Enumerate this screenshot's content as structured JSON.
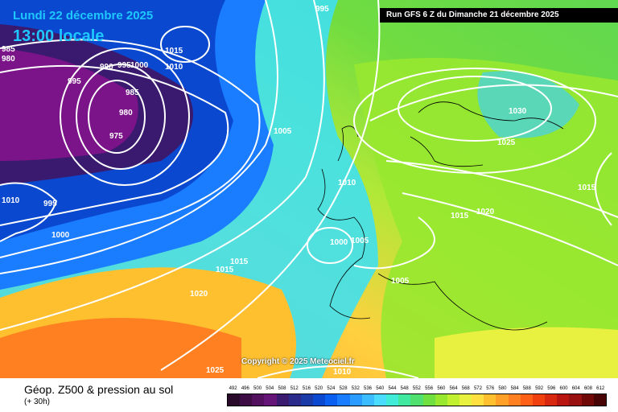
{
  "header": {
    "date": "Lundi 22 décembre 2025",
    "time": "13:00 locale",
    "run": "Run GFS 6 Z du Dimanche 21 décembre 2025"
  },
  "copyright": "Copyright © 2025 Meteociel.fr",
  "footer": {
    "title": "Géop. Z500 & pression au sol",
    "subtitle": "(+ 30h)"
  },
  "isobar_labels": [
    {
      "text": "995"
    },
    {
      "text": "985"
    },
    {
      "text": "980"
    },
    {
      "text": "1015"
    },
    {
      "text": "1010"
    },
    {
      "text": "990"
    },
    {
      "text": "995"
    },
    {
      "text": "1000"
    },
    {
      "text": "995"
    },
    {
      "text": "985"
    },
    {
      "text": "980"
    },
    {
      "text": "975"
    },
    {
      "text": "1005"
    },
    {
      "text": "1010"
    },
    {
      "text": "995"
    },
    {
      "text": "1000"
    },
    {
      "text": "1010"
    },
    {
      "text": "1000"
    },
    {
      "text": "1005"
    },
    {
      "text": "1015"
    },
    {
      "text": "1015"
    },
    {
      "text": "1020"
    },
    {
      "text": "1005"
    },
    {
      "text": "1030"
    },
    {
      "text": "1025"
    },
    {
      "text": "1015"
    },
    {
      "text": "1020"
    },
    {
      "text": "1015"
    },
    {
      "text": "1025"
    },
    {
      "text": "1010"
    }
  ],
  "scale": {
    "labels": [
      "492",
      "496",
      "500",
      "504",
      "508",
      "512",
      "516",
      "520",
      "524",
      "528",
      "532",
      "536",
      "540",
      "544",
      "548",
      "552",
      "556",
      "560",
      "564",
      "568",
      "572",
      "576",
      "580",
      "584",
      "588",
      "592",
      "596",
      "600",
      "604",
      "608",
      "612"
    ],
    "colors": [
      "#2a0a2a",
      "#3d0c44",
      "#52105e",
      "#651478",
      "#3a1a6e",
      "#2a2a8a",
      "#1a3aa8",
      "#0a48d0",
      "#0a5ef0",
      "#1a7cff",
      "#2a9cff",
      "#3abcff",
      "#4adcff",
      "#40ecd8",
      "#40e8a0",
      "#50e070",
      "#70e040",
      "#98e830",
      "#c0f030",
      "#e8f040",
      "#ffe040",
      "#ffc030",
      "#ffa028",
      "#ff8020",
      "#ff6018",
      "#f04010",
      "#d82810",
      "#b81410",
      "#981010",
      "#700808",
      "#480404"
    ]
  }
}
